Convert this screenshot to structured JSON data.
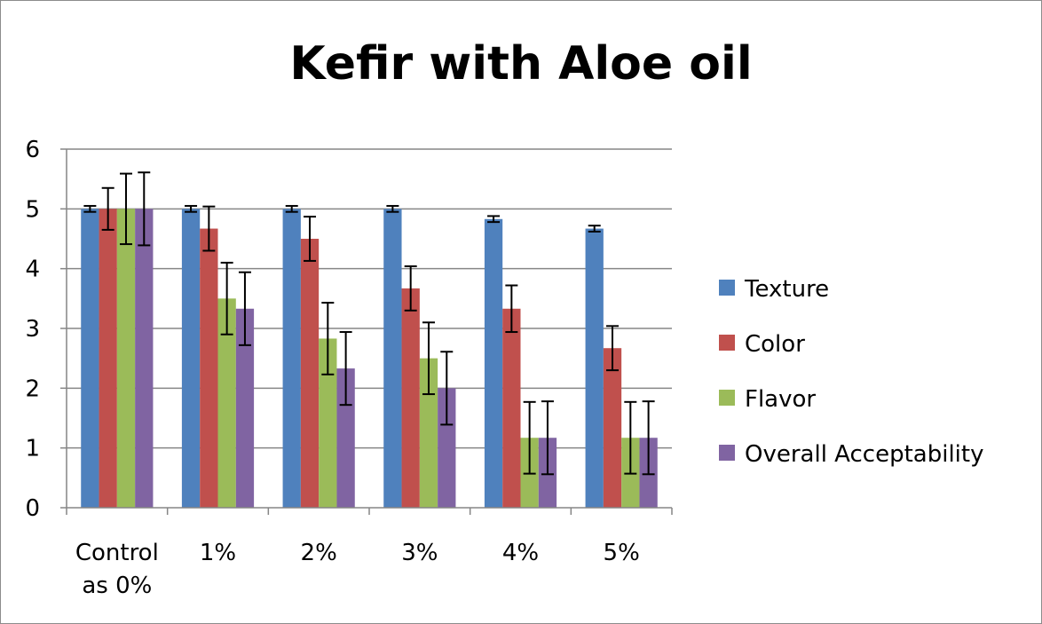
{
  "chart_data": {
    "type": "bar",
    "title": "Kefir with Aloe oil",
    "xlabel": "",
    "ylabel": "",
    "categories": [
      [
        "Control",
        "as 0%"
      ],
      [
        "1%"
      ],
      [
        "2%"
      ],
      [
        "3%"
      ],
      [
        "4%"
      ],
      [
        "5%"
      ]
    ],
    "ylim": [
      0,
      6
    ],
    "yticks": [
      0,
      1,
      2,
      3,
      4,
      5,
      6
    ],
    "grid": true,
    "legend_position": "right",
    "series": [
      {
        "name": "Texture",
        "color": "#4f81bd",
        "values": [
          5.0,
          5.0,
          5.0,
          5.0,
          4.83,
          4.67
        ],
        "errors": [
          0.05,
          0.05,
          0.05,
          0.05,
          0.05,
          0.05
        ]
      },
      {
        "name": "Color",
        "color": "#c0504d",
        "values": [
          5.0,
          4.67,
          4.5,
          3.67,
          3.33,
          2.67
        ],
        "errors": [
          0.35,
          0.37,
          0.37,
          0.37,
          0.39,
          0.37
        ]
      },
      {
        "name": "Flavor",
        "color": "#9bbb59",
        "values": [
          5.0,
          3.5,
          2.83,
          2.5,
          1.17,
          1.17
        ],
        "errors": [
          0.59,
          0.6,
          0.6,
          0.6,
          0.6,
          0.6
        ]
      },
      {
        "name": "Overall Acceptability",
        "color": "#8064a2",
        "values": [
          5.0,
          3.33,
          2.33,
          2.0,
          1.17,
          1.17
        ],
        "errors": [
          0.61,
          0.61,
          0.61,
          0.61,
          0.61,
          0.61
        ]
      }
    ]
  }
}
